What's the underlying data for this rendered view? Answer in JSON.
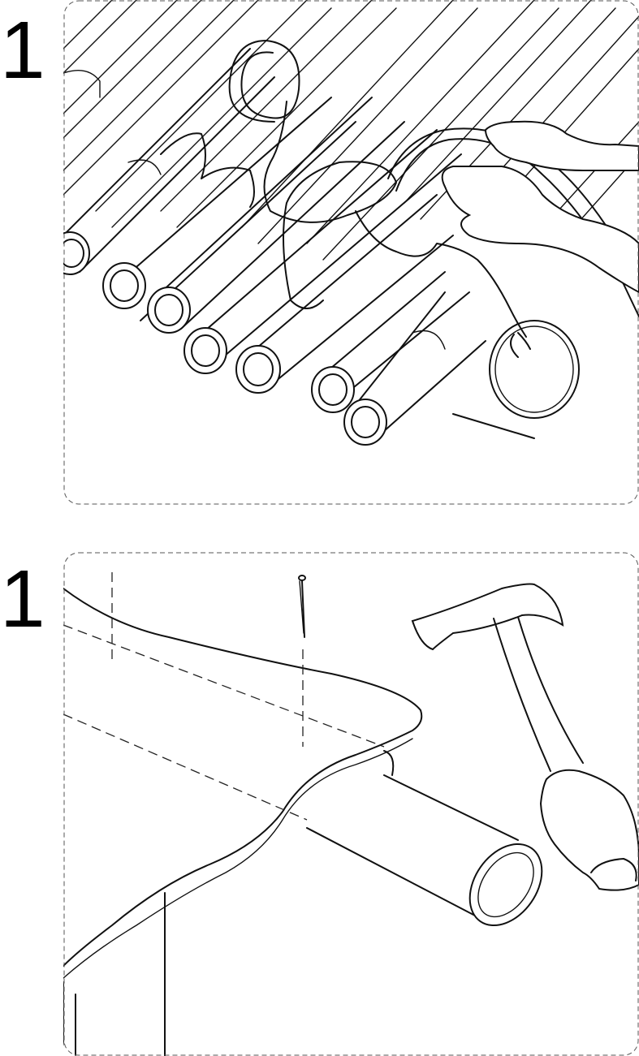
{
  "steps": [
    {
      "number": "1",
      "illustration": "tie-rope-around-poles"
    },
    {
      "number": "1",
      "illustration": "nail-board-to-pole"
    }
  ],
  "icons": [
    "rope-icon",
    "poles-icon",
    "hand-icon",
    "hammer-icon",
    "nail-icon",
    "board-icon"
  ]
}
